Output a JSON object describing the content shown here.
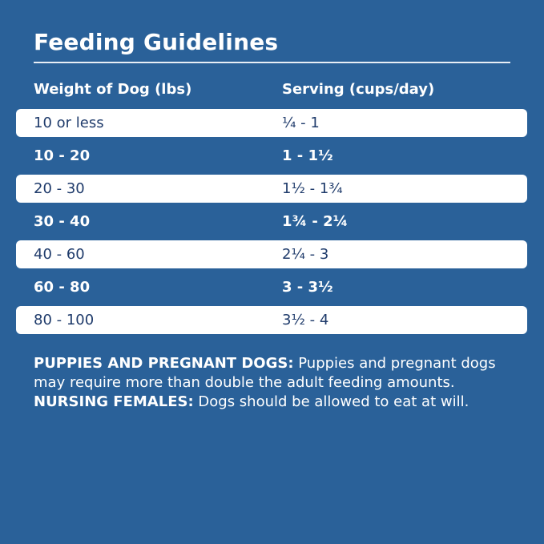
{
  "title": "Feeding Guidelines",
  "headers": {
    "weight": "Weight of Dog (lbs)",
    "serving": "Serving (cups/day)"
  },
  "rows": [
    {
      "weight": "10 or less",
      "serving": "¼ - 1"
    },
    {
      "weight": "10 - 20",
      "serving": "1 - 1½"
    },
    {
      "weight": "20 - 30",
      "serving": "1½ - 1¾"
    },
    {
      "weight": "30 - 40",
      "serving": "1¾ - 2¼"
    },
    {
      "weight": "40 - 60",
      "serving": "2¼ - 3"
    },
    {
      "weight": "60 - 80",
      "serving": "3 - 3½"
    },
    {
      "weight": "80 - 100",
      "serving": "3½ - 4"
    }
  ],
  "note": {
    "puppies_label": "PUPPIES AND PREGNANT DOGS:",
    "puppies_text": " Puppies and pregnant dogs may require more than double the adult feeding amounts. ",
    "nursing_label": "NURSING FEMALES:",
    "nursing_text": " Dogs should be allowed to eat at will."
  },
  "colors": {
    "background": "#2a6199",
    "row_light": "#ffffff",
    "dark_text": "#1f3b6b"
  }
}
